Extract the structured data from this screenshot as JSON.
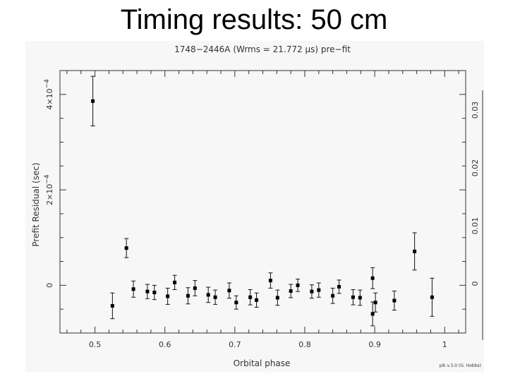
{
  "slide": {
    "title": "Timing results: 50 cm"
  },
  "chart_data": {
    "type": "scatter",
    "title": "1748−2446A (Wrms = 21.772 μs) pre−fit",
    "xlabel": "Orbital phase",
    "ylabel": "Prefit Residual (sec)",
    "xlim": [
      0.45,
      1.03
    ],
    "ylim": [
      -0.0001,
      0.00045
    ],
    "x_ticks": [
      "0.5",
      "0.6",
      "0.7",
      "0.8",
      "0.9",
      "1"
    ],
    "y_ticks": [
      {
        "value": 0,
        "label": "0"
      },
      {
        "value": 0.0002,
        "label": "2×10",
        "exp": "−4"
      },
      {
        "value": 0.0004,
        "label": "4×10",
        "exp": "−4"
      }
    ],
    "right_ticks": [
      "0",
      "0.01",
      "0.02",
      "0.03"
    ],
    "credit": "plk v.3.0 (G. Hobbs)",
    "series": [
      {
        "points": [
          {
            "x": 0.497,
            "y": 0.000386,
            "err": 5.2e-05
          },
          {
            "x": 0.525,
            "y": -4.3e-05,
            "err": 2.7e-05
          },
          {
            "x": 0.545,
            "y": 7.8e-05,
            "err": 2e-05
          },
          {
            "x": 0.555,
            "y": -8e-06,
            "err": 1.7e-05
          },
          {
            "x": 0.575,
            "y": -1.3e-05,
            "err": 1.5e-05
          },
          {
            "x": 0.585,
            "y": -1.5e-05,
            "err": 1.5e-05
          },
          {
            "x": 0.604,
            "y": -2.3e-05,
            "err": 1.7e-05
          },
          {
            "x": 0.614,
            "y": 6e-06,
            "err": 1.5e-05
          },
          {
            "x": 0.633,
            "y": -2.2e-05,
            "err": 1.7e-05
          },
          {
            "x": 0.643,
            "y": -6e-06,
            "err": 1.6e-05
          },
          {
            "x": 0.662,
            "y": -2e-05,
            "err": 1.6e-05
          },
          {
            "x": 0.672,
            "y": -2.5e-05,
            "err": 1.5e-05
          },
          {
            "x": 0.692,
            "y": -1.1e-05,
            "err": 1.6e-05
          },
          {
            "x": 0.702,
            "y": -3.6e-05,
            "err": 1.4e-05
          },
          {
            "x": 0.722,
            "y": -2.5e-05,
            "err": 1.6e-05
          },
          {
            "x": 0.731,
            "y": -3.1e-05,
            "err": 1.5e-05
          },
          {
            "x": 0.751,
            "y": 1e-05,
            "err": 1.6e-05
          },
          {
            "x": 0.761,
            "y": -2.6e-05,
            "err": 1.6e-05
          },
          {
            "x": 0.78,
            "y": -1.2e-05,
            "err": 1.4e-05
          },
          {
            "x": 0.79,
            "y": 0.0,
            "err": 1.3e-05
          },
          {
            "x": 0.81,
            "y": -1.3e-05,
            "err": 1.4e-05
          },
          {
            "x": 0.82,
            "y": -1e-05,
            "err": 1.5e-05
          },
          {
            "x": 0.84,
            "y": -2.2e-05,
            "err": 1.6e-05
          },
          {
            "x": 0.849,
            "y": -3e-06,
            "err": 1.4e-05
          },
          {
            "x": 0.869,
            "y": -2.5e-05,
            "err": 1.6e-05
          },
          {
            "x": 0.879,
            "y": -2.6e-05,
            "err": 1.6e-05
          },
          {
            "x": 0.897,
            "y": 1.5e-05,
            "err": 2.2e-05
          },
          {
            "x": 0.897,
            "y": -6e-05,
            "err": 2.5e-05
          },
          {
            "x": 0.901,
            "y": -3.6e-05,
            "err": 2e-05
          },
          {
            "x": 0.928,
            "y": -3.2e-05,
            "err": 2e-05
          },
          {
            "x": 0.957,
            "y": 7.1e-05,
            "err": 3.9e-05
          },
          {
            "x": 0.982,
            "y": -2.5e-05,
            "err": 4e-05
          }
        ]
      }
    ]
  }
}
